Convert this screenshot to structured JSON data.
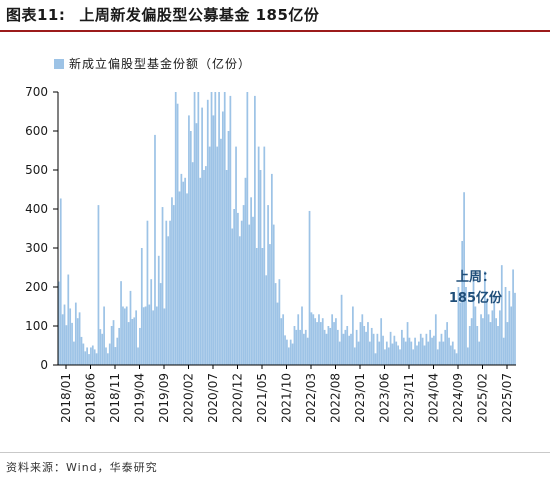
{
  "figure": {
    "label": "图表11:",
    "title": "上周新发偏股型公募基金 185亿份"
  },
  "source": "资料来源：Wind，华泰研究",
  "colors": {
    "bar": "#9dc3e6",
    "accent": "#9c1b1b",
    "annotation": "#1f4e79"
  },
  "chart_data": {
    "type": "bar",
    "series": [
      {
        "name": "新成立偏股型基金份额（亿份）",
        "values": [
          214,
          427,
          130,
          155,
          102,
          232,
          145,
          108,
          60,
          160,
          120,
          135,
          72,
          55,
          35,
          45,
          28,
          45,
          50,
          40,
          30,
          410,
          92,
          80,
          150,
          45,
          30,
          55,
          100,
          115,
          46,
          70,
          95,
          215,
          150,
          145,
          150,
          110,
          190,
          118,
          122,
          140,
          45,
          95,
          300,
          148,
          150,
          370,
          155,
          220,
          140,
          590,
          150,
          280,
          210,
          405,
          145,
          370,
          330,
          370,
          430,
          410,
          700,
          670,
          445,
          490,
          470,
          480,
          440,
          640,
          600,
          520,
          700,
          620,
          700,
          480,
          660,
          500,
          510,
          680,
          560,
          700,
          640,
          700,
          560,
          700,
          580,
          650,
          700,
          500,
          600,
          690,
          350,
          400,
          560,
          390,
          330,
          370,
          410,
          480,
          700,
          360,
          430,
          380,
          690,
          300,
          560,
          500,
          300,
          560,
          230,
          410,
          310,
          490,
          360,
          210,
          160,
          220,
          120,
          130,
          76,
          65,
          45,
          65,
          55,
          100,
          90,
          130,
          90,
          150,
          80,
          90,
          70,
          395,
          135,
          130,
          120,
          110,
          130,
          110,
          120,
          90,
          80,
          100,
          95,
          130,
          110,
          120,
          90,
          60,
          180,
          80,
          90,
          100,
          75,
          80,
          150,
          45,
          90,
          60,
          110,
          130,
          100,
          85,
          110,
          60,
          95,
          80,
          30,
          80,
          60,
          120,
          75,
          40,
          60,
          45,
          85,
          55,
          75,
          60,
          50,
          40,
          90,
          70,
          60,
          110,
          70,
          60,
          40,
          70,
          50,
          60,
          80,
          70,
          50,
          80,
          60,
          90,
          70,
          75,
          130,
          40,
          60,
          80,
          60,
          90,
          110,
          70,
          50,
          60,
          40,
          30,
          200,
          160,
          318,
          443,
          200,
          45,
          100,
          120,
          230,
          150,
          100,
          60,
          130,
          120,
          240,
          170,
          130,
          110,
          140,
          180,
          120,
          100,
          140,
          256,
          70,
          200,
          110,
          190,
          150,
          245,
          185
        ]
      }
    ],
    "x_tick_labels": [
      "2018/01",
      "2018/06",
      "2018/11",
      "2019/04",
      "2019/09",
      "2020/02",
      "2020/07",
      "2020/12",
      "2021/05",
      "2021/10",
      "2022/03",
      "2022/08",
      "2023/01",
      "2023/06",
      "2023/11",
      "2024/04",
      "2024/09",
      "2025/02",
      "2025/07"
    ],
    "y_ticks": [
      0,
      100,
      200,
      300,
      400,
      500,
      600,
      700
    ],
    "ylim": [
      0,
      700
    ],
    "annotation": {
      "line1": "上周：",
      "line2": "185亿份"
    },
    "legend_position": "top-left",
    "grid": false
  }
}
